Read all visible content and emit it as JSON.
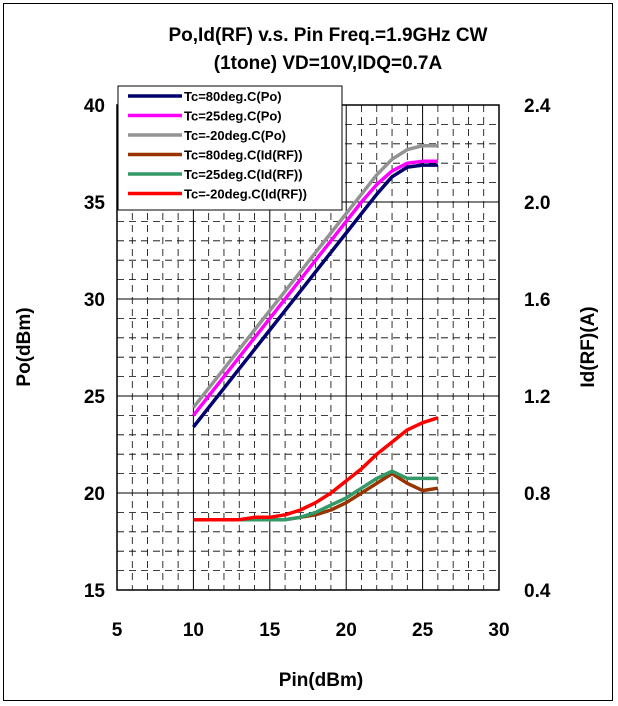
{
  "chart_data": {
    "type": "line",
    "title_line1": "Po,Id(RF)  v.s.  Pin  Freq.=1.9GHz  CW",
    "title_line2": "(1tone)  VD=10V,IDQ=0.7A",
    "xlabel": "Pin(dBm)",
    "ylabel": "Po(dBm)",
    "y2label": "Id(RF)(A)",
    "xlim": [
      5,
      30
    ],
    "ylim": [
      15,
      40
    ],
    "y2lim": [
      0.4,
      2.4
    ],
    "x_ticks": [
      "5",
      "10",
      "15",
      "20",
      "25",
      "30"
    ],
    "y_ticks": [
      "15",
      "20",
      "25",
      "30",
      "35",
      "40"
    ],
    "y2_ticks": [
      "0.4",
      "0.8",
      "1.2",
      "1.6",
      "2.0",
      "2.4"
    ],
    "grid": true,
    "legend_position": "top-left",
    "series": [
      {
        "name": "Tc=80deg.C(Po)",
        "axis": "left",
        "color": "#00006e",
        "x": [
          10,
          11,
          12,
          13,
          14,
          15,
          16,
          17,
          18,
          19,
          20,
          21,
          22,
          23,
          24,
          25,
          26
        ],
        "y": [
          23.4,
          24.4,
          25.4,
          26.4,
          27.4,
          28.4,
          29.4,
          30.4,
          31.4,
          32.4,
          33.4,
          34.4,
          35.4,
          36.3,
          36.8,
          36.9,
          36.9
        ]
      },
      {
        "name": "Tc=25deg.C(Po)",
        "axis": "left",
        "color": "#ff00ff",
        "x": [
          10,
          11,
          12,
          13,
          14,
          15,
          16,
          17,
          18,
          19,
          20,
          21,
          22,
          23,
          24,
          25,
          26
        ],
        "y": [
          24.0,
          25.0,
          26.0,
          27.0,
          28.0,
          29.0,
          30.0,
          31.0,
          32.0,
          33.0,
          34.0,
          35.0,
          35.9,
          36.6,
          37.0,
          37.1,
          37.1
        ]
      },
      {
        "name": "Tc=-20deg.C(Po)",
        "axis": "left",
        "color": "#939393",
        "x": [
          10,
          11,
          12,
          13,
          14,
          15,
          16,
          17,
          18,
          19,
          20,
          21,
          22,
          23,
          24,
          25,
          26
        ],
        "y": [
          24.4,
          25.4,
          26.4,
          27.4,
          28.4,
          29.4,
          30.4,
          31.4,
          32.4,
          33.4,
          34.4,
          35.4,
          36.4,
          37.2,
          37.7,
          37.9,
          37.9
        ]
      },
      {
        "name": "Tc=80deg.C(Id(RF))",
        "axis": "right",
        "color": "#993300",
        "x": [
          10,
          11,
          12,
          13,
          14,
          15,
          16,
          17,
          18,
          19,
          20,
          21,
          22,
          23,
          24,
          25,
          26
        ],
        "y": [
          0.69,
          0.69,
          0.69,
          0.69,
          0.69,
          0.69,
          0.69,
          0.7,
          0.71,
          0.73,
          0.76,
          0.8,
          0.84,
          0.88,
          0.84,
          0.81,
          0.82
        ]
      },
      {
        "name": "Tc=25deg.C(Id(RF))",
        "axis": "right",
        "color": "#339966",
        "x": [
          10,
          11,
          12,
          13,
          14,
          15,
          16,
          17,
          18,
          19,
          20,
          21,
          22,
          23,
          24,
          25,
          26
        ],
        "y": [
          0.69,
          0.69,
          0.69,
          0.69,
          0.69,
          0.69,
          0.69,
          0.7,
          0.72,
          0.75,
          0.78,
          0.82,
          0.86,
          0.89,
          0.86,
          0.86,
          0.86
        ]
      },
      {
        "name": "Tc=-20deg.C(Id(RF))",
        "axis": "right",
        "color": "#ff0000",
        "x": [
          10,
          11,
          12,
          13,
          14,
          15,
          16,
          17,
          18,
          19,
          20,
          21,
          22,
          23,
          24,
          25,
          26
        ],
        "y": [
          0.69,
          0.69,
          0.69,
          0.69,
          0.7,
          0.7,
          0.71,
          0.73,
          0.76,
          0.8,
          0.85,
          0.9,
          0.96,
          1.01,
          1.06,
          1.09,
          1.11
        ]
      }
    ]
  }
}
